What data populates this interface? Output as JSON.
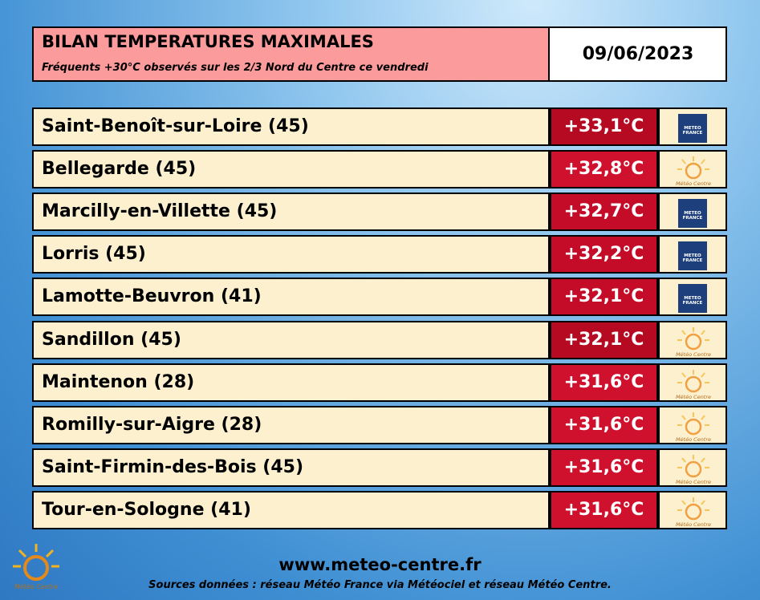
{
  "header": {
    "title": "BILAN TEMPERATURES MAXIMALES",
    "subtitle": "Fréquents +30°C observés sur les 2/3 Nord du Centre ce vendredi",
    "date": "09/06/2023"
  },
  "table": {
    "rows": [
      {
        "station": "Saint-Benoît-sur-Loire (45)",
        "temperature": "+33,1°C",
        "color": "#b50a22",
        "source": "METEO FRANCE"
      },
      {
        "station": "Bellegarde (45)",
        "temperature": "+32,8°C",
        "color": "#d0112e",
        "source": "Météo Centre"
      },
      {
        "station": "Marcilly-en-Villette (45)",
        "temperature": "+32,7°C",
        "color": "#c40c28",
        "source": "METEO FRANCE"
      },
      {
        "station": "Lorris (45)",
        "temperature": "+32,2°C",
        "color": "#c40c28",
        "source": "METEO FRANCE"
      },
      {
        "station": "Lamotte-Beuvron (41)",
        "temperature": "+32,1°C",
        "color": "#c40c28",
        "source": "METEO FRANCE"
      },
      {
        "station": "Sandillon (45)",
        "temperature": "+32,1°C",
        "color": "#b50a22",
        "source": "Météo Centre"
      },
      {
        "station": "Maintenon (28)",
        "temperature": "+31,6°C",
        "color": "#d0112e",
        "source": "Météo Centre"
      },
      {
        "station": "Romilly-sur-Aigre (28)",
        "temperature": "+31,6°C",
        "color": "#d0112e",
        "source": "Météo Centre"
      },
      {
        "station": "Saint-Firmin-des-Bois (45)",
        "temperature": "+31,6°C",
        "color": "#d0112e",
        "source": "Météo Centre"
      },
      {
        "station": "Tour-en-Sologne (41)",
        "temperature": "+31,6°C",
        "color": "#d0112e",
        "source": "Météo Centre"
      }
    ]
  },
  "footer": {
    "website": "www.meteo-centre.fr",
    "sources": "Sources données : réseau Météo France via Météociel et réseau Météo Centre.",
    "logo_text": "Météo Centre"
  }
}
